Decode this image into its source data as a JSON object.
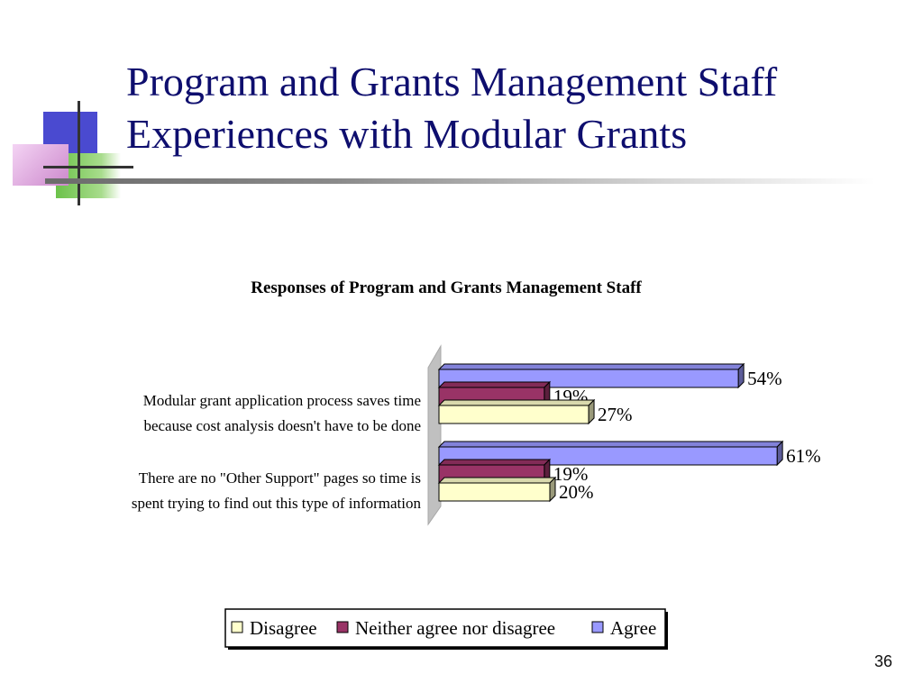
{
  "slide": {
    "title_lines": [
      "Program and Grants Management Staff",
      "Experiences with Modular Grants"
    ],
    "slide_number": "36"
  },
  "colors": {
    "title": "#0e0e6e",
    "logo_blue": "#4a4ad0",
    "logo_green": "#6cc24a",
    "logo_pink": "#e6b3e6",
    "disagree": "#ffffcc",
    "neither": "#993366",
    "agree": "#9999ff",
    "wall": "#c0c0c0"
  },
  "chart_data": {
    "type": "bar",
    "orientation": "horizontal",
    "three_d": true,
    "title": "Responses of Program and Grants Management Staff",
    "categories": [
      [
        "Modular grant application process saves time",
        "because cost analysis doesn't have to be done"
      ],
      [
        "There are no \"Other Support\" pages so time is",
        "spent trying to find out this type of information"
      ]
    ],
    "series": [
      {
        "name": "Disagree",
        "values": [
          27,
          20
        ],
        "labels": [
          "27%",
          "20%"
        ],
        "color": "#ffffcc"
      },
      {
        "name": "Neither agree nor disagree",
        "values": [
          19,
          19
        ],
        "labels": [
          "19%",
          "19%"
        ],
        "color": "#993366"
      },
      {
        "name": "Agree",
        "values": [
          54,
          61
        ],
        "labels": [
          "54%",
          "61%"
        ],
        "color": "#9999ff"
      }
    ],
    "xlim": [
      0,
      100
    ],
    "grid": false,
    "legend_position": "bottom"
  }
}
